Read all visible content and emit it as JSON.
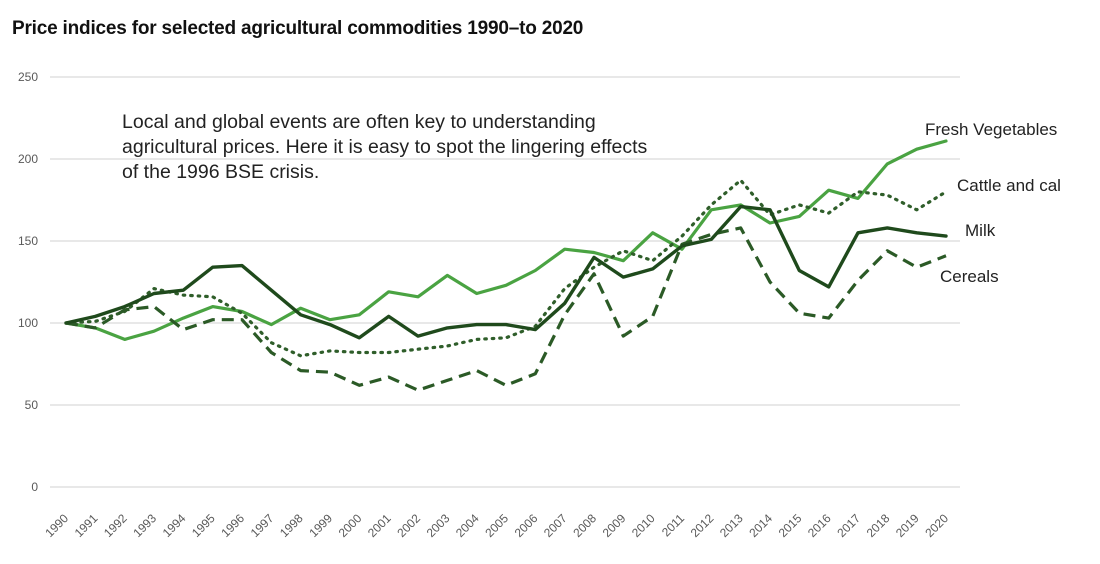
{
  "chart_data": {
    "type": "line",
    "title": "Price indices for selected agricultural commodities  1990–to 2020",
    "annotation": "Local and global events are often key to understanding agricultural prices. Here it is easy to spot the lingering effects of the 1996 BSE crisis.",
    "xlabel": "",
    "ylabel": "",
    "ylim": [
      0,
      250
    ],
    "yticks": [
      0,
      50,
      100,
      150,
      200,
      250
    ],
    "grid": true,
    "legend": "direct labels at line ends (right)",
    "x": [
      "1990",
      "1991",
      "1992",
      "1993",
      "1994",
      "1995",
      "1996",
      "1997",
      "1998",
      "1999",
      "2000",
      "2001",
      "2002",
      "2003",
      "2004",
      "2005",
      "2006",
      "2007",
      "2008",
      "2009",
      "2010",
      "2011",
      "2012",
      "2013",
      "2014",
      "2015",
      "2016",
      "2017",
      "2018",
      "2019",
      "2020"
    ],
    "series": [
      {
        "name": "Fresh Vegetables",
        "style": "solid-light",
        "color": "#4aa342",
        "values": [
          100,
          97,
          90,
          95,
          103,
          110,
          107,
          99,
          109,
          102,
          105,
          119,
          116,
          129,
          118,
          123,
          132,
          145,
          143,
          138,
          155,
          145,
          169,
          172,
          161,
          165,
          181,
          176,
          197,
          206,
          211
        ]
      },
      {
        "name": "Cattle and cal",
        "style": "dotted",
        "color": "#2f5e2a",
        "values": [
          100,
          101,
          107,
          121,
          117,
          116,
          106,
          88,
          80,
          83,
          82,
          82,
          84,
          86,
          90,
          91,
          98,
          121,
          134,
          144,
          138,
          153,
          172,
          187,
          166,
          172,
          167,
          180,
          178,
          169,
          180
        ]
      },
      {
        "name": "Milk",
        "style": "solid-dark",
        "color": "#1f4a1c",
        "values": [
          100,
          104,
          110,
          118,
          120,
          134,
          135,
          120,
          105,
          99,
          91,
          104,
          92,
          97,
          99,
          99,
          96,
          112,
          140,
          128,
          133,
          147,
          151,
          171,
          169,
          132,
          122,
          155,
          158,
          155,
          153
        ]
      },
      {
        "name": "Cereals",
        "style": "dashed",
        "color": "#2b5a26",
        "values": [
          100,
          97,
          108,
          110,
          96,
          102,
          102,
          82,
          71,
          70,
          62,
          67,
          59,
          65,
          71,
          62,
          69,
          105,
          130,
          92,
          104,
          148,
          154,
          158,
          125,
          106,
          103,
          126,
          144,
          134,
          141
        ]
      }
    ]
  }
}
